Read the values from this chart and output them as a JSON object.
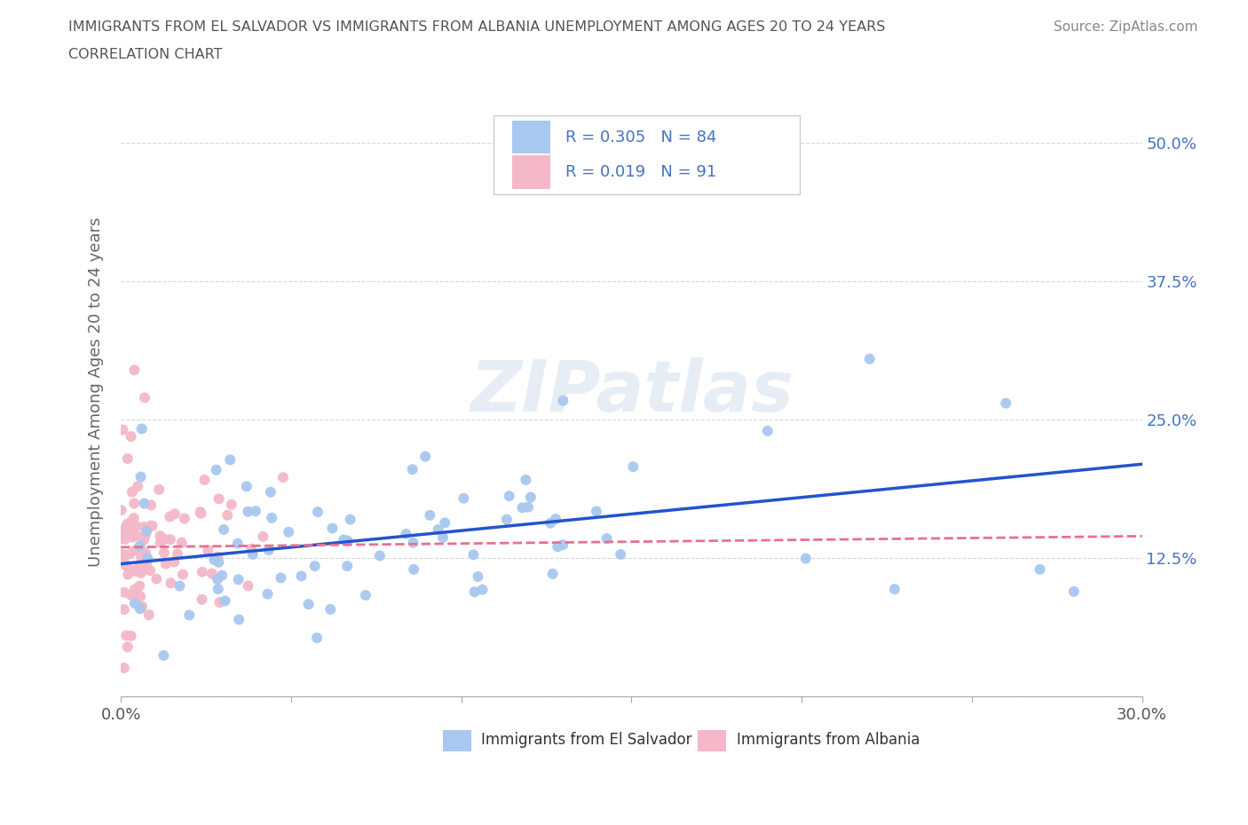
{
  "title_line1": "IMMIGRANTS FROM EL SALVADOR VS IMMIGRANTS FROM ALBANIA UNEMPLOYMENT AMONG AGES 20 TO 24 YEARS",
  "title_line2": "CORRELATION CHART",
  "source_text": "Source: ZipAtlas.com",
  "ylabel": "Unemployment Among Ages 20 to 24 years",
  "xlim": [
    0.0,
    0.3
  ],
  "ylim": [
    0.0,
    0.55
  ],
  "xticks": [
    0.0,
    0.05,
    0.1,
    0.15,
    0.2,
    0.25,
    0.3
  ],
  "ytick_positions": [
    0.0,
    0.125,
    0.25,
    0.375,
    0.5
  ],
  "ytick_labels_right": [
    "",
    "12.5%",
    "25.0%",
    "37.5%",
    "50.0%"
  ],
  "el_salvador_R": 0.305,
  "el_salvador_N": 84,
  "albania_R": 0.019,
  "albania_N": 91,
  "el_salvador_color": "#a8c8f0",
  "albania_color": "#f4b8c8",
  "trendline_el_salvador_color": "#2255cc",
  "trendline_albania_color": "#e87090",
  "legend_label_1": "Immigrants from El Salvador",
  "legend_label_2": "Immigrants from Albania",
  "watermark": "ZIPatlas",
  "background_color": "#ffffff",
  "grid_color": "#d8d8d8",
  "title_color": "#555555",
  "label_color": "#4472c4",
  "source_color": "#888888",
  "ylabel_color": "#666666",
  "tick_label_color": "#555555"
}
